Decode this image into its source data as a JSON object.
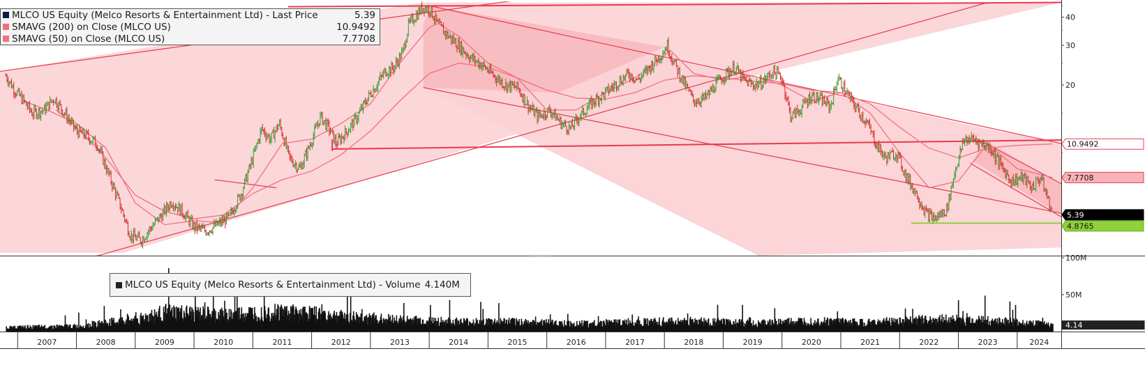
{
  "chart_data": {
    "type": "line",
    "price_panel": {
      "legend": [
        {
          "label": "MLCO US Equity (Melco Resorts & Entertainment Ltd) - Last Price",
          "value": "5.39",
          "color": "#0d1b3e"
        },
        {
          "label": "SMAVG (200)  on Close (MLCO US)",
          "value": "10.9492",
          "color": "#f0707c"
        },
        {
          "label": "SMAVG (50)  on Close (MLCO US)",
          "value": "7.7708",
          "color": "#f0707c"
        }
      ],
      "yticks": [
        {
          "value": 40,
          "label": "40"
        },
        {
          "value": 30,
          "label": "30"
        },
        {
          "value": 20,
          "label": "20"
        }
      ],
      "ylim": [
        3.5,
        47
      ],
      "y_scale": "log",
      "value_tags": [
        {
          "value": 10.9492,
          "label": "10.9492",
          "bg": "#ffffff",
          "border": "#e8384f",
          "color": "#111111"
        },
        {
          "value": 7.7708,
          "label": "7.7708",
          "bg": "#f7b3ba",
          "border": "#e8384f",
          "color": "#111111"
        },
        {
          "value": 5.39,
          "label": "5.39",
          "bg": "#000000",
          "border": "#000000",
          "color": "#ffffff"
        },
        {
          "value": 4.8765,
          "label": "4.8765",
          "bg": "#8fd13a",
          "border": "#6ba82a",
          "color": "#111111"
        }
      ],
      "price_points": [
        [
          2006.8,
          22
        ],
        [
          2006.95,
          19
        ],
        [
          2007.1,
          17
        ],
        [
          2007.25,
          15
        ],
        [
          2007.45,
          15.5
        ],
        [
          2007.62,
          17.5
        ],
        [
          2007.8,
          15
        ],
        [
          2008.0,
          12.5
        ],
        [
          2008.15,
          12
        ],
        [
          2008.35,
          11
        ],
        [
          2008.55,
          8
        ],
        [
          2008.75,
          5.8
        ],
        [
          2008.92,
          4.3
        ],
        [
          2009.1,
          4.1
        ],
        [
          2009.25,
          4.6
        ],
        [
          2009.45,
          5.3
        ],
        [
          2009.62,
          6.1
        ],
        [
          2009.8,
          5.5
        ],
        [
          2010.0,
          4.7
        ],
        [
          2010.2,
          4.5
        ],
        [
          2010.4,
          4.8
        ],
        [
          2010.6,
          5.2
        ],
        [
          2010.8,
          6.6
        ],
        [
          2011.0,
          9.5
        ],
        [
          2011.15,
          12.8
        ],
        [
          2011.3,
          11.5
        ],
        [
          2011.45,
          13.5
        ],
        [
          2011.62,
          9.5
        ],
        [
          2011.8,
          8.5
        ],
        [
          2011.95,
          10.5
        ],
        [
          2012.15,
          14.5
        ],
        [
          2012.3,
          12.8
        ],
        [
          2012.42,
          11
        ],
        [
          2012.6,
          12.5
        ],
        [
          2012.78,
          14.5
        ],
        [
          2012.95,
          17.5
        ],
        [
          2013.1,
          20
        ],
        [
          2013.25,
          23
        ],
        [
          2013.4,
          24
        ],
        [
          2013.55,
          28
        ],
        [
          2013.65,
          37
        ],
        [
          2013.75,
          40
        ],
        [
          2013.9,
          44.5
        ],
        [
          2014.02,
          43
        ],
        [
          2014.15,
          37
        ],
        [
          2014.3,
          33.5
        ],
        [
          2014.5,
          30
        ],
        [
          2014.7,
          26.5
        ],
        [
          2014.9,
          24.5
        ],
        [
          2015.1,
          22
        ],
        [
          2015.3,
          20
        ],
        [
          2015.5,
          19.5
        ],
        [
          2015.7,
          16
        ],
        [
          2015.85,
          14.5
        ],
        [
          2016.05,
          15.5
        ],
        [
          2016.25,
          13.5
        ],
        [
          2016.4,
          12.8
        ],
        [
          2016.55,
          14.5
        ],
        [
          2016.8,
          17
        ],
        [
          2017.0,
          18.5
        ],
        [
          2017.2,
          20.5
        ],
        [
          2017.4,
          22.5
        ],
        [
          2017.55,
          21
        ],
        [
          2017.75,
          24
        ],
        [
          2017.95,
          27.5
        ],
        [
          2018.05,
          30
        ],
        [
          2018.1,
          27.5
        ],
        [
          2018.2,
          24
        ],
        [
          2018.35,
          20
        ],
        [
          2018.5,
          17
        ],
        [
          2018.7,
          17.5
        ],
        [
          2018.9,
          20.5
        ],
        [
          2019.05,
          22.5
        ],
        [
          2019.2,
          24
        ],
        [
          2019.35,
          21
        ],
        [
          2019.5,
          20
        ],
        [
          2019.65,
          20.5
        ],
        [
          2019.85,
          23
        ],
        [
          2020.0,
          21.5
        ],
        [
          2020.15,
          14.5
        ],
        [
          2020.3,
          15.5
        ],
        [
          2020.5,
          18
        ],
        [
          2020.7,
          17
        ],
        [
          2020.82,
          16
        ],
        [
          2020.95,
          21.5
        ],
        [
          2021.1,
          18.5
        ],
        [
          2021.25,
          16
        ],
        [
          2021.45,
          13.5
        ],
        [
          2021.6,
          11
        ],
        [
          2021.75,
          9.5
        ],
        [
          2021.95,
          10
        ],
        [
          2022.1,
          8
        ],
        [
          2022.3,
          6.5
        ],
        [
          2022.45,
          5.4
        ],
        [
          2022.6,
          5.1
        ],
        [
          2022.8,
          5.6
        ],
        [
          2022.95,
          8.5
        ],
        [
          2023.1,
          11.5
        ],
        [
          2023.25,
          11.5
        ],
        [
          2023.4,
          11
        ],
        [
          2023.55,
          10.5
        ],
        [
          2023.72,
          8.8
        ],
        [
          2023.9,
          7.5
        ],
        [
          2024.1,
          7.8
        ],
        [
          2024.25,
          7
        ],
        [
          2024.4,
          7.8
        ],
        [
          2024.5,
          6.5
        ],
        [
          2024.6,
          5.39
        ]
      ],
      "sma200_points": [
        [
          2007.65,
          15.5
        ],
        [
          2008.0,
          13
        ],
        [
          2008.5,
          9.5
        ],
        [
          2009.0,
          6.5
        ],
        [
          2009.5,
          5.5
        ],
        [
          2010.0,
          5.1
        ],
        [
          2010.5,
          5.3
        ],
        [
          2011.0,
          6.6
        ],
        [
          2011.5,
          7.6
        ],
        [
          2012.0,
          8.3
        ],
        [
          2012.5,
          9.8
        ],
        [
          2013.0,
          12.5
        ],
        [
          2013.5,
          17
        ],
        [
          2014.0,
          22.5
        ],
        [
          2014.5,
          25
        ],
        [
          2015.0,
          24
        ],
        [
          2015.5,
          21.5
        ],
        [
          2016.0,
          19
        ],
        [
          2016.5,
          17.5
        ],
        [
          2017.0,
          17.3
        ],
        [
          2017.5,
          18.5
        ],
        [
          2018.0,
          21
        ],
        [
          2018.5,
          22
        ],
        [
          2019.0,
          21.5
        ],
        [
          2019.5,
          20.8
        ],
        [
          2020.0,
          20.3
        ],
        [
          2020.5,
          19
        ],
        [
          2021.0,
          18.5
        ],
        [
          2021.5,
          16.5
        ],
        [
          2022.0,
          13
        ],
        [
          2022.5,
          10.5
        ],
        [
          2023.0,
          9.5
        ],
        [
          2023.5,
          10.5
        ],
        [
          2024.0,
          10.8
        ],
        [
          2024.6,
          10.9492
        ]
      ],
      "sma50_points": [
        [
          2007.1,
          17
        ],
        [
          2007.5,
          15.5
        ],
        [
          2008.0,
          13.5
        ],
        [
          2008.5,
          10.5
        ],
        [
          2009.0,
          6
        ],
        [
          2009.5,
          4.8
        ],
        [
          2010.0,
          5
        ],
        [
          2010.5,
          4.9
        ],
        [
          2011.0,
          7
        ],
        [
          2011.5,
          11
        ],
        [
          2012.0,
          11.5
        ],
        [
          2012.5,
          13.5
        ],
        [
          2013.0,
          16.5
        ],
        [
          2013.5,
          25
        ],
        [
          2014.0,
          36
        ],
        [
          2014.15,
          37.5
        ],
        [
          2014.5,
          33
        ],
        [
          2015.0,
          25
        ],
        [
          2015.5,
          21.5
        ],
        [
          2016.0,
          15.5
        ],
        [
          2016.5,
          15.5
        ],
        [
          2017.0,
          18.5
        ],
        [
          2017.5,
          21.5
        ],
        [
          2018.0,
          27
        ],
        [
          2018.1,
          28.5
        ],
        [
          2018.5,
          22.5
        ],
        [
          2019.0,
          21
        ],
        [
          2019.5,
          22
        ],
        [
          2020.0,
          20
        ],
        [
          2020.5,
          17
        ],
        [
          2021.0,
          18.5
        ],
        [
          2021.5,
          15
        ],
        [
          2022.0,
          10
        ],
        [
          2022.5,
          7
        ],
        [
          2023.0,
          7.5
        ],
        [
          2023.5,
          11
        ],
        [
          2024.0,
          8.5
        ],
        [
          2024.6,
          7.7708
        ]
      ],
      "support_level": 4.8765
    },
    "volume_panel": {
      "legend": {
        "label": "MLCO US Equity (Melco Resorts & Entertainment Ltd) - Volume",
        "value": "4.140M",
        "color": "#222222"
      },
      "yticks": [
        {
          "value": 100,
          "label": "100M"
        },
        {
          "value": 50,
          "label": "50M"
        }
      ],
      "ylim": [
        0,
        100
      ],
      "volume_profile": [
        [
          2006.8,
          6
        ],
        [
          2008.0,
          8
        ],
        [
          2009.0,
          18
        ],
        [
          2009.5,
          28
        ],
        [
          2010.5,
          24
        ],
        [
          2011.5,
          30
        ],
        [
          2012.5,
          22
        ],
        [
          2013.5,
          17
        ],
        [
          2014.5,
          14
        ],
        [
          2015.5,
          14
        ],
        [
          2016.5,
          11
        ],
        [
          2017.5,
          14
        ],
        [
          2018.5,
          15
        ],
        [
          2019.5,
          12
        ],
        [
          2020.5,
          15
        ],
        [
          2021.5,
          13
        ],
        [
          2022.5,
          18
        ],
        [
          2023.5,
          16
        ],
        [
          2024.6,
          10
        ]
      ],
      "last_volume": 4.14,
      "last_label": "4.14"
    },
    "xlim": [
      2006.7,
      2024.75
    ],
    "x_axis": {
      "years": [
        "2007",
        "2008",
        "2009",
        "2010",
        "2011",
        "2012",
        "2013",
        "2014",
        "2015",
        "2016",
        "2017",
        "2018",
        "2019",
        "2020",
        "2021",
        "2022",
        "2023",
        "2024"
      ]
    },
    "colors": {
      "price_up": "#2e9e2e",
      "price_down": "#d42828",
      "sma": "#f07080",
      "trend_line": "#e8394c",
      "channel_fill": "#fbd3d6",
      "channel_fill_dark": "#f7b8bd",
      "support": "#8fd13a",
      "volume": "#111111"
    }
  }
}
